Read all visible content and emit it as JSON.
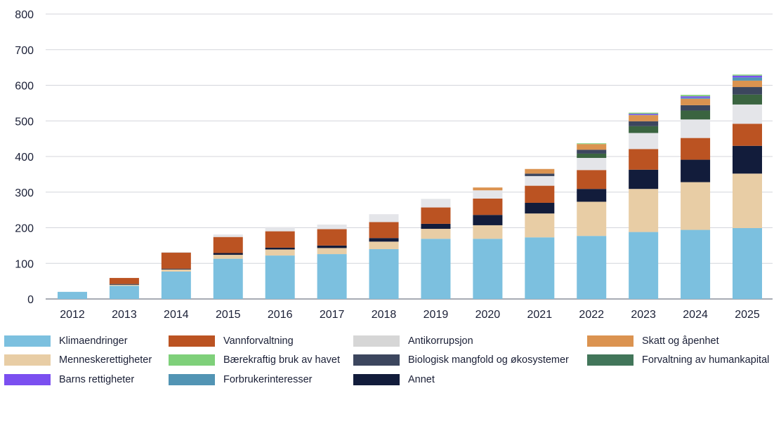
{
  "chart_data": {
    "type": "bar",
    "stacked": true,
    "title": "",
    "xlabel": "",
    "ylabel": "",
    "ylim": [
      0,
      800
    ],
    "yticks": [
      0,
      100,
      200,
      300,
      400,
      500,
      600,
      700,
      800
    ],
    "grid": true,
    "legend_position": "bottom",
    "categories": [
      "2012",
      "2013",
      "2014",
      "2015",
      "2016",
      "2017",
      "2018",
      "2019",
      "2020",
      "2021",
      "2022",
      "2023",
      "2024",
      "2025"
    ],
    "series": [
      {
        "name": "Klimaendringer",
        "color": "#7cc0df",
        "values": [
          20,
          37,
          77,
          113,
          122,
          126,
          140,
          169,
          169,
          173,
          177,
          188,
          194,
          199
        ]
      },
      {
        "name": "Menneskerettigheter",
        "color": "#e8cda5",
        "values": [
          0,
          3,
          6,
          11,
          17,
          17,
          21,
          28,
          38,
          67,
          96,
          121,
          134,
          153
        ]
      },
      {
        "name": "Annet",
        "color": "#121c3b",
        "values": [
          0,
          2,
          2,
          5,
          5,
          7,
          10,
          14,
          29,
          30,
          36,
          54,
          63,
          78
        ]
      },
      {
        "name": "Vannforvaltning",
        "color": "#bb5322",
        "values": [
          0,
          17,
          45,
          45,
          46,
          46,
          45,
          46,
          46,
          48,
          53,
          58,
          61,
          62
        ]
      },
      {
        "name": "Antikorrupsjon",
        "color": "#e4e5e9",
        "values": [
          0,
          0,
          2,
          7,
          12,
          13,
          22,
          24,
          23,
          27,
          34,
          45,
          52,
          54
        ]
      },
      {
        "name": "Forvaltning av humankapital",
        "color": "#3a6440",
        "values": [
          0,
          0,
          0,
          0,
          0,
          0,
          0,
          0,
          0,
          0,
          12,
          19,
          25,
          28
        ]
      },
      {
        "name": "Biologisk mangfold og økosystemer",
        "color": "#3c465e",
        "values": [
          0,
          0,
          0,
          0,
          0,
          0,
          0,
          0,
          0,
          7,
          11,
          14,
          15,
          21
        ]
      },
      {
        "name": "Skatt og åpenhet",
        "color": "#db9350",
        "values": [
          0,
          0,
          0,
          0,
          0,
          0,
          0,
          0,
          8,
          13,
          16,
          17,
          18,
          18
        ]
      },
      {
        "name": "Forbrukerinteresser",
        "color": "#5294b4",
        "values": [
          0,
          0,
          0,
          0,
          0,
          0,
          0,
          0,
          0,
          0,
          0,
          1,
          3,
          9
        ]
      },
      {
        "name": "Barns rettigheter",
        "color": "#7b4ff0",
        "values": [
          0,
          0,
          0,
          0,
          0,
          0,
          0,
          0,
          0,
          0,
          0,
          3,
          4,
          5
        ]
      },
      {
        "name": "Bærekraftig bruk av havet",
        "color": "#7fd07a",
        "values": [
          0,
          0,
          0,
          0,
          0,
          0,
          0,
          0,
          0,
          0,
          2,
          3,
          4,
          3
        ]
      }
    ]
  },
  "legend": [
    {
      "label": "Klimaendringer",
      "color": "#7cc0df"
    },
    {
      "label": "Vannforvaltning",
      "color": "#bb5322"
    },
    {
      "label": "Antikorrupsjon",
      "color": "#d6d6d6"
    },
    {
      "label": "Skatt og åpenhet",
      "color": "#db9350"
    },
    {
      "label": "Menneskerettigheter",
      "color": "#e8cda5"
    },
    {
      "label": "Bærekraftig bruk av havet",
      "color": "#7fd07a"
    },
    {
      "label": "Biologisk mangfold og økosystemer",
      "color": "#3c465e"
    },
    {
      "label": "Forvaltning av humankapital",
      "color": "#42765a"
    },
    {
      "label": "Barns rettigheter",
      "color": "#7b4ff0"
    },
    {
      "label": "Forbrukerinteresser",
      "color": "#5294b4"
    },
    {
      "label": "Annet",
      "color": "#121c3b"
    }
  ]
}
